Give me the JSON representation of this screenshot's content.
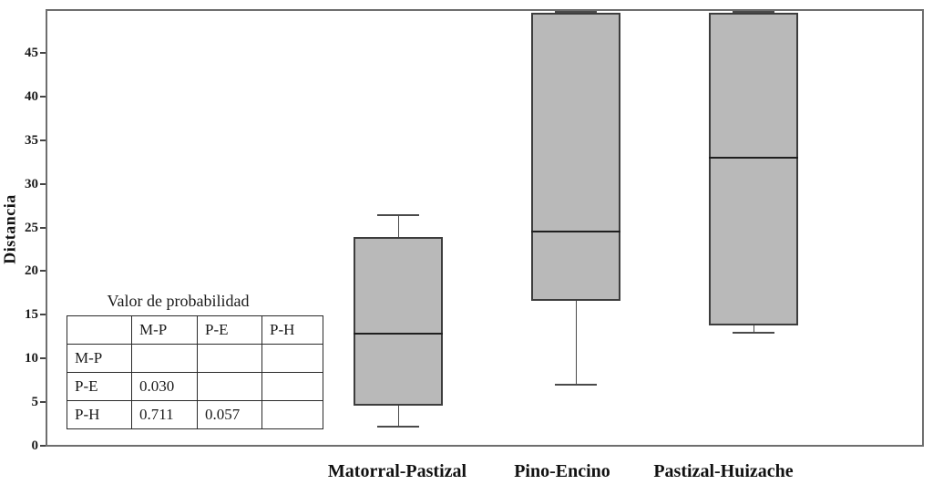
{
  "chart_data": {
    "type": "box",
    "title": "",
    "ylabel": "Distancia",
    "xlabel": "",
    "ylim": [
      0,
      50
    ],
    "yticks": [
      0,
      5,
      10,
      15,
      20,
      25,
      30,
      35,
      40,
      45
    ],
    "grid": false,
    "categories": [
      "Matorral-Pastizal",
      "Pino-Encino",
      "Pastizal-Huizache"
    ],
    "series": [
      {
        "name": "Matorral-Pastizal",
        "whisker_low": 2.2,
        "q1": 4.6,
        "median": 12.8,
        "q3": 23.9,
        "whisker_high": 26.5
      },
      {
        "name": "Pino-Encino",
        "whisker_low": 7.0,
        "q1": 16.6,
        "median": 24.5,
        "q3": 49.6,
        "whisker_high": 49.9
      },
      {
        "name": "Pastizal-Huizache",
        "whisker_low": 12.9,
        "q1": 13.8,
        "median": 33.0,
        "q3": 49.6,
        "whisker_high": 49.9
      }
    ],
    "colors": {
      "box_fill": "#b9b9b9",
      "box_border": "#3d3d3d",
      "median": "#1f1f1f",
      "whisker": "#4a4a4a",
      "frame": "#6e6e6e"
    }
  },
  "table": {
    "title": "Valor de probabilidad",
    "col_headers": [
      "",
      "M-P",
      "P-E",
      "P-H"
    ],
    "rows": [
      {
        "label": "M-P",
        "cells": [
          "",
          "",
          ""
        ]
      },
      {
        "label": "P-E",
        "cells": [
          "0.030",
          "",
          ""
        ]
      },
      {
        "label": "P-H",
        "cells": [
          "0.711",
          "0.057",
          ""
        ]
      }
    ]
  }
}
